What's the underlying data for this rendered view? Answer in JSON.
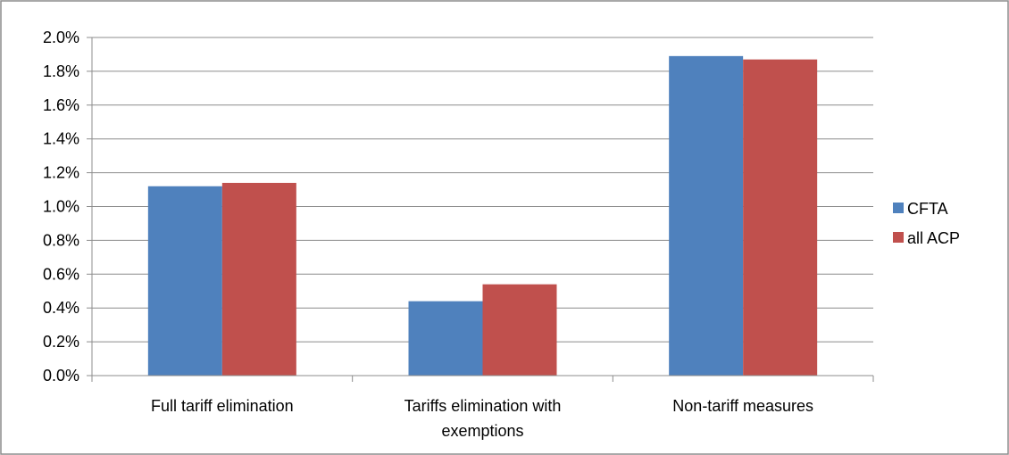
{
  "chart_data": {
    "type": "bar",
    "title": "",
    "xlabel": "",
    "ylabel": "",
    "categories": [
      [
        "Full tariff elimination"
      ],
      [
        "Tariffs elimination with",
        "exemptions"
      ],
      [
        "Non-tariff measures"
      ]
    ],
    "series": [
      {
        "name": "CFTA",
        "color": "#4f81bd",
        "values": [
          1.12,
          0.44,
          1.89
        ]
      },
      {
        "name": "all ACP",
        "color": "#c0504d",
        "values": [
          1.14,
          0.54,
          1.87
        ]
      }
    ],
    "ylim": [
      0,
      2.0
    ],
    "ytick_step": 0.2,
    "ytick_labels": [
      "0.0%",
      "0.2%",
      "0.4%",
      "0.6%",
      "0.8%",
      "1.0%",
      "1.2%",
      "1.4%",
      "1.6%",
      "1.8%",
      "2.0%"
    ],
    "grid": true,
    "legend_position": "right"
  }
}
